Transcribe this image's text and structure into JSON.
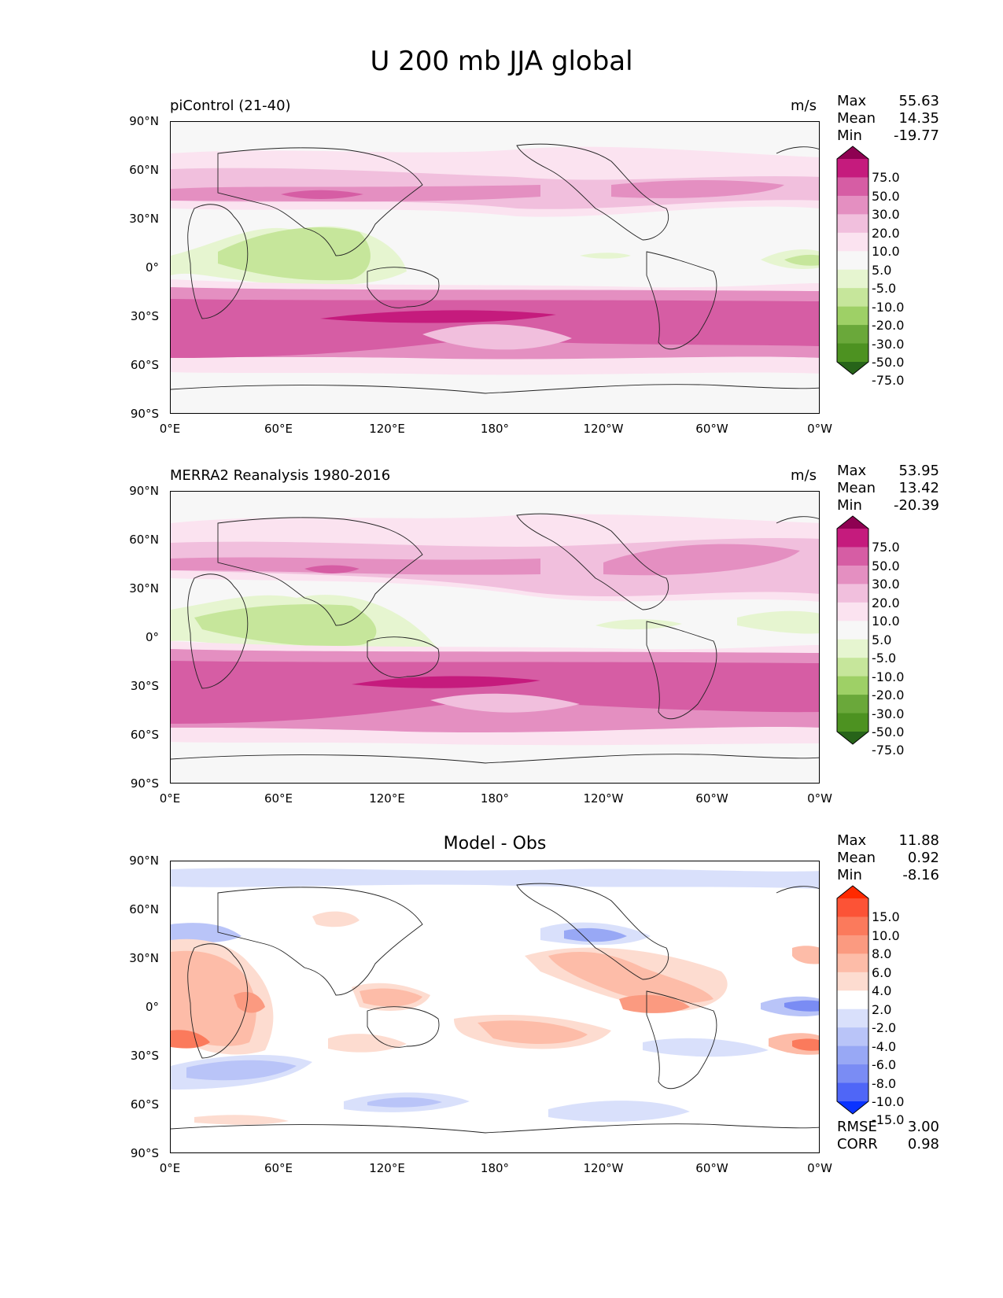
{
  "figure": {
    "title": "U 200 mb JJA global"
  },
  "axes": {
    "lat_ticks": [
      "90°N",
      "60°N",
      "30°N",
      "0°",
      "30°S",
      "60°S",
      "90°S"
    ],
    "lon_ticks": [
      "0°E",
      "60°E",
      "120°E",
      "180°",
      "120°W",
      "60°W",
      "0°W"
    ]
  },
  "panels": [
    {
      "label": "piControl (21-40)",
      "units": "m/s",
      "stats": [
        {
          "name": "Max",
          "value": "55.63"
        },
        {
          "name": "Mean",
          "value": "14.35"
        },
        {
          "name": "Min",
          "value": "-19.77"
        }
      ],
      "colorbar": {
        "labels": [
          "75.0",
          "50.0",
          "30.0",
          "20.0",
          "10.0",
          "5.0",
          "-5.0",
          "-10.0",
          "-20.0",
          "-30.0",
          "-50.0",
          "-75.0"
        ],
        "colors": [
          "#8e0152",
          "#c51b7d",
          "#d65da4",
          "#e48fc1",
          "#f1bfdd",
          "#fbe3f0",
          "#f7f7f7",
          "#e6f5d0",
          "#c6e69b",
          "#9ed066",
          "#6aa83a",
          "#4d9221",
          "#276419"
        ]
      }
    },
    {
      "label": "MERRA2 Reanalysis 1980-2016",
      "units": "m/s",
      "stats": [
        {
          "name": "Max",
          "value": "53.95"
        },
        {
          "name": "Mean",
          "value": "13.42"
        },
        {
          "name": "Min",
          "value": "-20.39"
        }
      ],
      "colorbar": {
        "labels": [
          "75.0",
          "50.0",
          "30.0",
          "20.0",
          "10.0",
          "5.0",
          "-5.0",
          "-10.0",
          "-20.0",
          "-30.0",
          "-50.0",
          "-75.0"
        ],
        "colors": [
          "#8e0152",
          "#c51b7d",
          "#d65da4",
          "#e48fc1",
          "#f1bfdd",
          "#fbe3f0",
          "#f7f7f7",
          "#e6f5d0",
          "#c6e69b",
          "#9ed066",
          "#6aa83a",
          "#4d9221",
          "#276419"
        ]
      }
    },
    {
      "label": "Model - Obs",
      "units": "",
      "stats": [
        {
          "name": "Max",
          "value": "11.88"
        },
        {
          "name": "Mean",
          "value": "0.92"
        },
        {
          "name": "Min",
          "value": "-8.16"
        }
      ],
      "extra_stats": [
        {
          "name": "RMSE",
          "value": "3.00"
        },
        {
          "name": "CORR",
          "value": "0.98"
        }
      ],
      "colorbar": {
        "labels": [
          "15.0",
          "10.0",
          "8.0",
          "6.0",
          "4.0",
          "2.0",
          "-2.0",
          "-4.0",
          "-6.0",
          "-8.0",
          "-10.0",
          "-15.0"
        ],
        "colors": [
          "#ff2a00",
          "#fc5336",
          "#fb7a5c",
          "#fb9a80",
          "#fdbca8",
          "#fddcd0",
          "#ffffff",
          "#d9e0fb",
          "#b9c4f8",
          "#98a8f5",
          "#7a8cf4",
          "#4f66f7",
          "#0a33ff"
        ]
      }
    }
  ]
}
